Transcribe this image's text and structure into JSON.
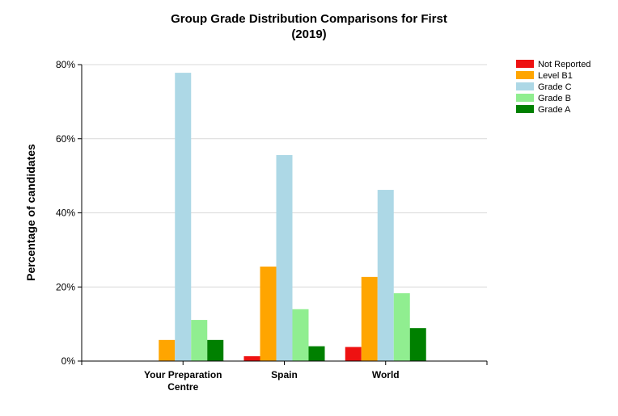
{
  "chart_data": {
    "type": "bar",
    "title_lines": [
      "Group Grade Distribution Comparisons for First",
      "(2019)"
    ],
    "xlabel": "",
    "ylabel": "Percentage of candidates",
    "categories": [
      [
        "Your Preparation",
        "Centre"
      ],
      [
        "Spain"
      ],
      [
        "World"
      ]
    ],
    "ylim": [
      0,
      80
    ],
    "yticks": [
      0,
      20,
      40,
      60,
      80
    ],
    "ytick_labels": [
      "0%",
      "20%",
      "40%",
      "60%",
      "80%"
    ],
    "grid": true,
    "legend_position": "top-right",
    "series": [
      {
        "name": "Not Reported",
        "color": "#ee1111",
        "values": [
          0,
          1.3,
          3.8
        ]
      },
      {
        "name": "Level B1",
        "color": "#ffa500",
        "values": [
          5.7,
          25.5,
          22.7
        ]
      },
      {
        "name": "Grade C",
        "color": "#add8e6",
        "values": [
          77.8,
          55.6,
          46.2
        ]
      },
      {
        "name": "Grade B",
        "color": "#90ee90",
        "values": [
          11.1,
          14.0,
          18.3
        ]
      },
      {
        "name": "Grade A",
        "color": "#008000",
        "values": [
          5.7,
          4.0,
          8.9
        ]
      }
    ]
  }
}
